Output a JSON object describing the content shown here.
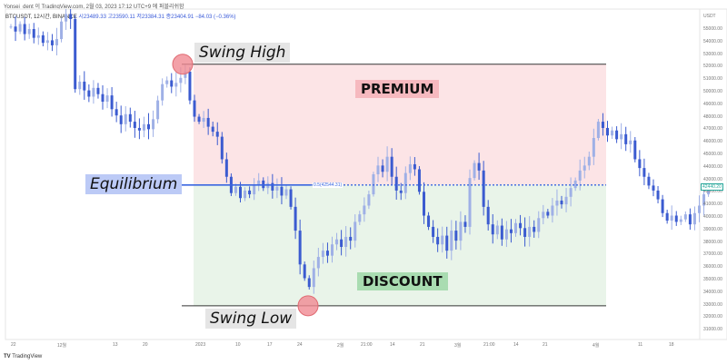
{
  "header": {
    "published": "Yonsei_dent 이 TradingView.com, 2월 03, 2023 17:12 UTC+9 에 퍼블리쉬함",
    "symbol": "BTCUSDT, 12시간, BINANCE",
    "open": "시23489.33",
    "high": "고23590.11",
    "low": "저23384.31",
    "close": "종23404.91",
    "change": "−84.03 (−0.36%)"
  },
  "footer": {
    "brand": "TradingView"
  },
  "annotations": {
    "swing_high": "Swing High",
    "swing_low": "Swing Low",
    "premium": "PREMIUM",
    "discount": "DISCOUNT",
    "equilibrium": "Equilibrium",
    "eq_level": "0.5(42544.31)"
  },
  "colors": {
    "up": "#9fb0e6",
    "down": "#3b5bd0",
    "premium": "#fce4e6",
    "discount": "#e9f4e9",
    "equilibrium": "#3a66e0",
    "marker": "#f08a92"
  },
  "chart_data": {
    "type": "candlestick",
    "yunit": "USDT",
    "ylim": [
      30200,
      55900
    ],
    "yticks": [
      "55000.00",
      "54000.00",
      "53000.00",
      "52000.00",
      "51000.00",
      "50000.00",
      "49000.00",
      "48000.00",
      "47000.00",
      "46000.00",
      "45000.00",
      "44000.00",
      "43000.00",
      "42000.00",
      "41000.00",
      "40000.00",
      "39000.00",
      "38000.00",
      "37000.00",
      "36000.00",
      "35000.00",
      "34000.00",
      "33000.00",
      "32000.00",
      "31000.00"
    ],
    "xticks": [
      "22",
      "12월",
      "13",
      "20",
      "2023",
      "10",
      "17",
      "24",
      "2월",
      "21:00",
      "14",
      "21",
      "3월",
      "21:00",
      "14",
      "21",
      "4월",
      "11",
      "18"
    ],
    "last_price": "42440.20",
    "swing_high": 52188,
    "swing_low": 32900,
    "equilibrium": 42544.31,
    "closes": [
      55200,
      54800,
      55400,
      54600,
      55000,
      54300,
      54500,
      53900,
      54100,
      53700,
      54200,
      55600,
      56200,
      55800,
      50200,
      50800,
      50100,
      49600,
      50300,
      49800,
      49200,
      49700,
      48600,
      48100,
      47400,
      48200,
      47600,
      47100,
      46900,
      47400,
      47000,
      47800,
      49300,
      50600,
      50900,
      50400,
      50700,
      51100,
      51600,
      49300,
      48000,
      47600,
      47900,
      47200,
      46800,
      46400,
      44600,
      43200,
      41900,
      42400,
      41500,
      42100,
      41800,
      42600,
      42900,
      42300,
      42700,
      42100,
      42400,
      41700,
      42200,
      40800,
      38900,
      36200,
      35100,
      34400,
      35900,
      36800,
      37300,
      36900,
      37800,
      38200,
      37600,
      38400,
      38100,
      39600,
      40200,
      40900,
      41800,
      43400,
      44100,
      43600,
      44800,
      43200,
      42100,
      41900,
      43500,
      44200,
      43800,
      42000,
      40100,
      39200,
      38400,
      37800,
      38500,
      37300,
      38900,
      38100,
      39600,
      39200,
      43100,
      44300,
      43700,
      40800,
      39400,
      38600,
      39300,
      38200,
      39000,
      38700,
      39500,
      39100,
      38400,
      39200,
      38800,
      39900,
      40400,
      40100,
      40900,
      41300,
      41000,
      41600,
      42300,
      42900,
      43700,
      44100,
      44800,
      46300,
      47600,
      47100,
      46500,
      46900,
      46200,
      46600,
      45800,
      46100,
      44600,
      43900,
      43200,
      42500,
      42100,
      41400,
      40300,
      39700,
      40100,
      39600,
      39800,
      40200,
      39400,
      40300,
      40900,
      41800,
      42440
    ]
  }
}
